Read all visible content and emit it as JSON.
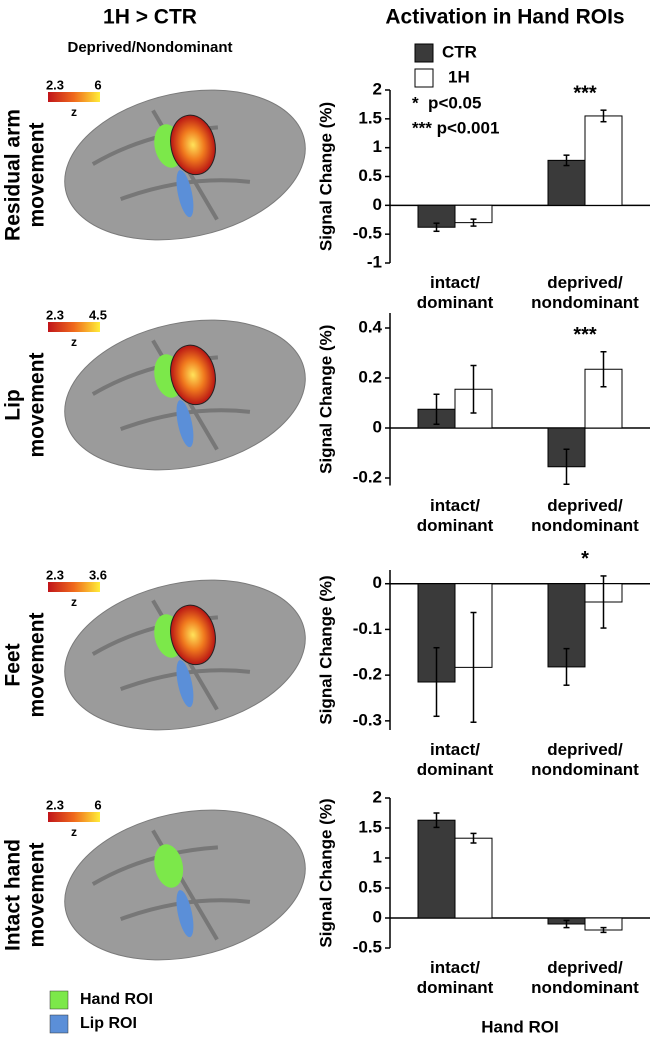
{
  "figure": {
    "column_titles": [
      "1H > CTR",
      "Activation in Hand ROIs"
    ],
    "subtitle": "Deprived/Nondominant",
    "rows": [
      {
        "label": [
          "Residual arm",
          "movement"
        ],
        "cbar_min": "2.3",
        "cbar_max": "6",
        "cbar_unit": "z"
      },
      {
        "label": [
          "Lip",
          "movement"
        ],
        "cbar_min": "2.3",
        "cbar_max": "4.5",
        "cbar_unit": "z"
      },
      {
        "label": [
          "Feet",
          "movement"
        ],
        "cbar_min": "2.3",
        "cbar_max": "3.6",
        "cbar_unit": "z"
      },
      {
        "label": [
          "Intact hand",
          "movement"
        ],
        "cbar_min": "2.3",
        "cbar_max": "6",
        "cbar_unit": "z"
      }
    ],
    "roi_legend": [
      {
        "label": "Hand ROI",
        "color": "#7ce84a"
      },
      {
        "label": "Lip ROI",
        "color": "#5b8fd8"
      }
    ]
  },
  "chart_data": [
    {
      "type": "bar",
      "ylabel": "Signal Change (%)",
      "categories": [
        "intact/ dominant",
        "deprived/ nondominant"
      ],
      "series": [
        {
          "name": "CTR",
          "color": "#3a3a3a",
          "values": [
            -0.38,
            0.78
          ],
          "errors": [
            0.07,
            0.09
          ]
        },
        {
          "name": "1H",
          "color": "#ffffff",
          "values": [
            -0.3,
            1.55
          ],
          "errors": [
            0.06,
            0.1
          ]
        }
      ],
      "significance": [
        null,
        "***"
      ],
      "legend": true,
      "legend_notes": [
        "*  p<0.05",
        "*** p<0.001"
      ],
      "ylim": [
        -1,
        2
      ],
      "yticks": [
        -1,
        -0.5,
        0,
        0.5,
        1,
        1.5,
        2
      ]
    },
    {
      "type": "bar",
      "ylabel": "Signal Change (%)",
      "categories": [
        "intact/ dominant",
        "deprived/ nondominant"
      ],
      "series": [
        {
          "name": "CTR",
          "color": "#3a3a3a",
          "values": [
            0.075,
            -0.155
          ],
          "errors": [
            0.06,
            0.07
          ]
        },
        {
          "name": "1H",
          "color": "#ffffff",
          "values": [
            0.155,
            0.235
          ],
          "errors": [
            0.095,
            0.07
          ]
        }
      ],
      "significance": [
        null,
        "***"
      ],
      "legend": false,
      "ylim": [
        -0.23,
        0.46
      ],
      "yticks": [
        -0.2,
        0,
        0.2,
        0.4
      ]
    },
    {
      "type": "bar",
      "ylabel": "Signal Change (%)",
      "categories": [
        "intact/ dominant",
        "deprived/ nondominant"
      ],
      "series": [
        {
          "name": "CTR",
          "color": "#3a3a3a",
          "values": [
            -0.215,
            -0.182
          ],
          "errors": [
            0.075,
            0.04
          ]
        },
        {
          "name": "1H",
          "color": "#ffffff",
          "values": [
            -0.183,
            -0.04
          ],
          "errors": [
            0.12,
            0.057
          ]
        }
      ],
      "significance": [
        null,
        "*"
      ],
      "legend": false,
      "ylim": [
        -0.32,
        0.03
      ],
      "yticks": [
        -0.3,
        -0.2,
        -0.1,
        0
      ]
    },
    {
      "type": "bar",
      "ylabel": "Signal Change (%)",
      "xlabel": "Hand ROI",
      "categories": [
        "intact/ dominant",
        "deprived/ nondominant"
      ],
      "series": [
        {
          "name": "CTR",
          "color": "#3a3a3a",
          "values": [
            1.63,
            -0.1
          ],
          "errors": [
            0.12,
            0.06
          ]
        },
        {
          "name": "1H",
          "color": "#ffffff",
          "values": [
            1.33,
            -0.2
          ],
          "errors": [
            0.08,
            0.04
          ]
        }
      ],
      "significance": [
        null,
        null
      ],
      "legend": false,
      "ylim": [
        -0.5,
        2
      ],
      "yticks": [
        -0.5,
        0,
        0.5,
        1,
        1.5,
        2
      ]
    }
  ]
}
